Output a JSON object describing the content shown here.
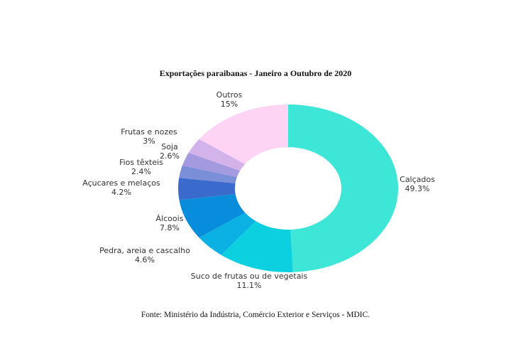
{
  "chart_data": {
    "type": "pie",
    "title": "Exportações paraibanas - Janeiro a Outubro de 2020",
    "source": "Fonte: Ministério da Indústria, Comércio Exterior e Serviços - MDIC.",
    "slices": [
      {
        "label": "Calçados",
        "value_label": "49.3%",
        "value": 49.3,
        "color": "#3de6d6"
      },
      {
        "label": "Suco de frutas ou de vegetais",
        "value_label": "11.1%",
        "value": 11.1,
        "color": "#0ccfdf"
      },
      {
        "label": "Pedra, areia e cascalho",
        "value_label": "4.6%",
        "value": 4.6,
        "color": "#0bb1e3"
      },
      {
        "label": "Álcoois",
        "value_label": "7.8%",
        "value": 7.8,
        "color": "#078ddb"
      },
      {
        "label": "Açucares e melaços",
        "value_label": "4.2%",
        "value": 4.2,
        "color": "#3a6bcc"
      },
      {
        "label": "Fios têxteis",
        "value_label": "2.4%",
        "value": 2.4,
        "color": "#7b8fd9"
      },
      {
        "label": "Soja",
        "value_label": "2.6%",
        "value": 2.6,
        "color": "#a49adf"
      },
      {
        "label": "Frutas e nozes",
        "value_label": "3%",
        "value": 3,
        "color": "#d4b3ea"
      },
      {
        "label": "Outros",
        "value_label": "15%",
        "value": 15,
        "color": "#fdd4f4"
      }
    ]
  }
}
